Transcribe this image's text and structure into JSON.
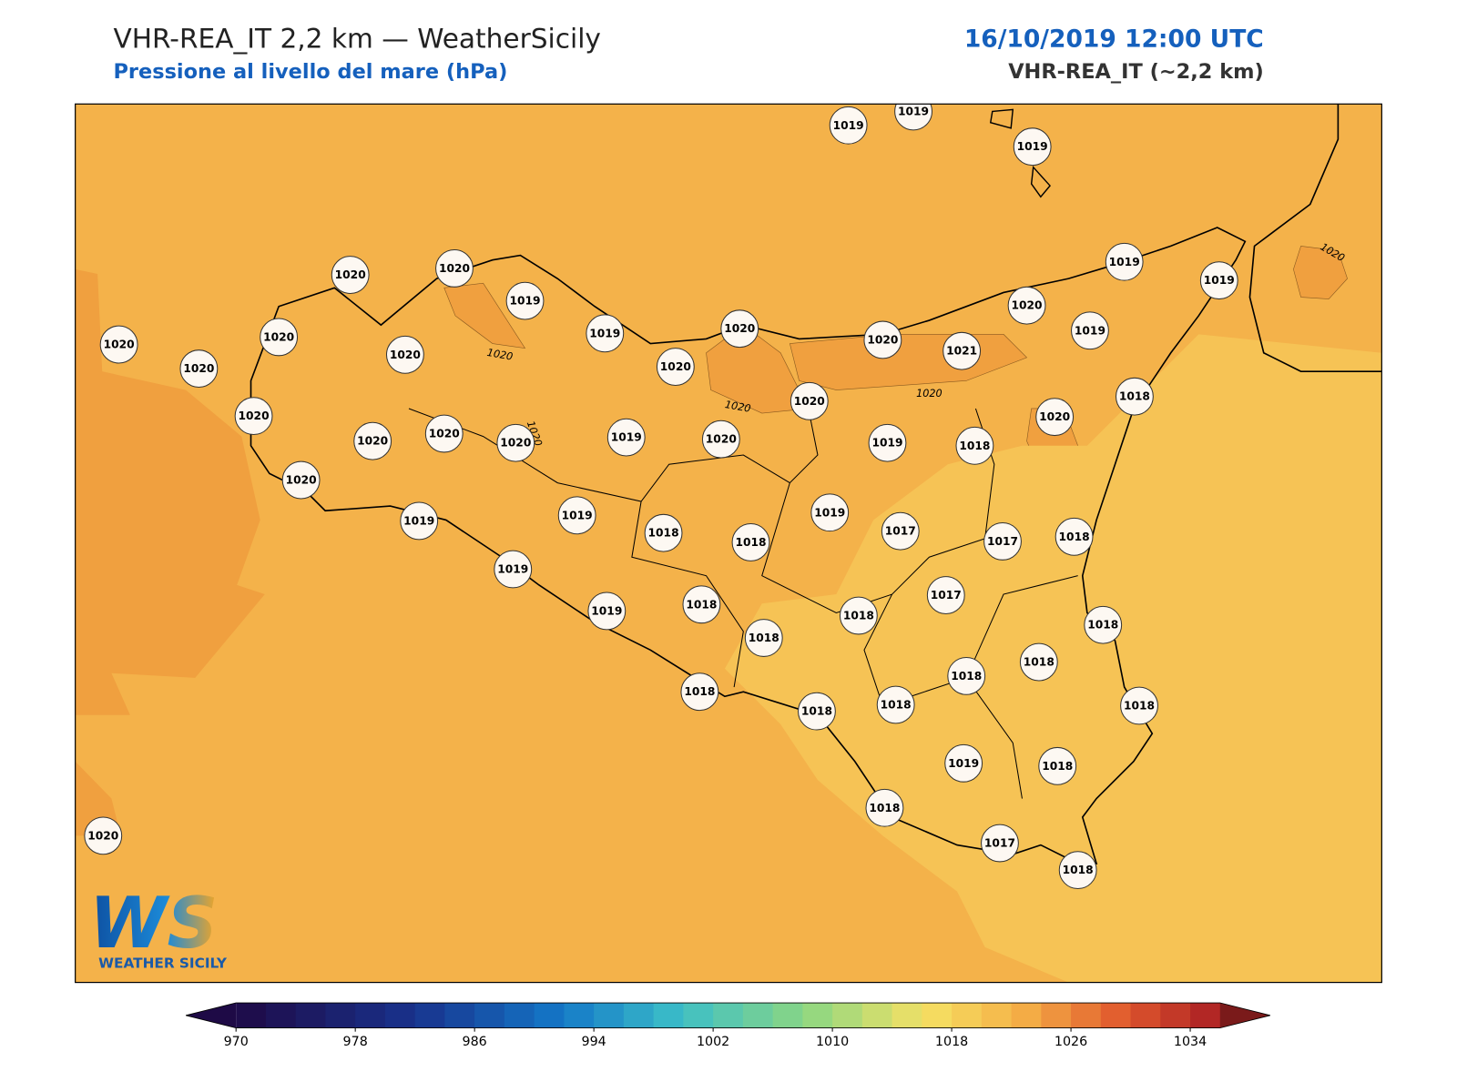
{
  "header": {
    "title": "VHR-REA_IT 2,2 km — WeatherSicily",
    "subtitle": "Pressione al livello del mare (hPa)",
    "datetime": "16/10/2019 12:00 UTC",
    "model": "VHR-REA_IT (~2,2 km)"
  },
  "stations": [
    1019,
    1019,
    1019,
    1020,
    1020,
    1019,
    1019,
    1019,
    1020,
    1020,
    1020,
    1019,
    1020,
    1020,
    1021,
    1020,
    1019,
    1020,
    1020,
    1018,
    1020,
    1020,
    1020,
    1020,
    1020,
    1020,
    1019,
    1020,
    1019,
    1018,
    1020,
    1019,
    1019,
    1019,
    1018,
    1018,
    1017,
    1017,
    1018,
    1019,
    1019,
    1018,
    1017,
    1018,
    1018,
    1018,
    1018,
    1018,
    1018,
    1018,
    1018,
    1018,
    1019,
    1018,
    1018,
    1017,
    1018,
    1020
  ],
  "contour_labels": [
    "1020",
    "1020",
    "1020",
    "1020",
    "1020"
  ],
  "colorbar": {
    "range": [
      970,
      1036
    ],
    "step": 2,
    "ticks": [
      970,
      978,
      986,
      994,
      1002,
      1010,
      1018,
      1026,
      1034
    ]
  },
  "logo": {
    "mark": "WS",
    "text": "WEATHER SICILY"
  }
}
